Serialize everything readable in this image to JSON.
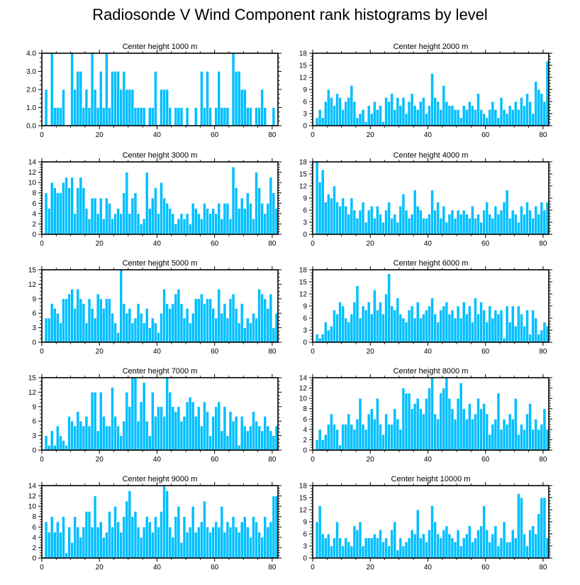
{
  "title": "Radiosonde V Wind Component rank histograms by level",
  "colors": {
    "bar": "#00bfff",
    "bar_edge": "#ffffff",
    "axis": "#000000"
  },
  "chart_data": [
    {
      "type": "bar",
      "title": "Center height 1000 m",
      "xlim": [
        0,
        82
      ],
      "ylim": [
        0,
        4
      ],
      "xticks": [
        0,
        20,
        40,
        60,
        80
      ],
      "xtick_labels": [
        "0",
        "20",
        "40",
        "60",
        "80"
      ],
      "yticks": [
        0,
        1,
        2,
        3,
        4
      ],
      "ytick_labels": [
        "0.0",
        "1.0",
        "2.0",
        "3.0",
        "4.0"
      ],
      "values": [
        0,
        2,
        0,
        4,
        1,
        1,
        1,
        2,
        0,
        0,
        4,
        2,
        3,
        3,
        1,
        2,
        1,
        4,
        2,
        1,
        3,
        1,
        4,
        1,
        3,
        3,
        3,
        2,
        3,
        2,
        2,
        2,
        1,
        1,
        1,
        1,
        0,
        1,
        1,
        3,
        0,
        2,
        2,
        2,
        1,
        0,
        1,
        1,
        1,
        0,
        1,
        0,
        0,
        1,
        0,
        3,
        1,
        3,
        1,
        0,
        1,
        3,
        1,
        1,
        1,
        0,
        4,
        3,
        3,
        2,
        2,
        1,
        1,
        0,
        1,
        1,
        2,
        1,
        0,
        0,
        1,
        0
      ]
    },
    {
      "type": "bar",
      "title": "Center height 2000 m",
      "xlim": [
        0,
        82
      ],
      "ylim": [
        0,
        18
      ],
      "xticks": [
        0,
        20,
        40,
        60,
        80
      ],
      "xtick_labels": [
        "0",
        "20",
        "40",
        "60",
        "80"
      ],
      "yticks": [
        0,
        3,
        6,
        9,
        12,
        15,
        18
      ],
      "ytick_labels": [
        "0",
        "3",
        "6",
        "9",
        "12",
        "15",
        "18"
      ],
      "values": [
        0,
        2,
        4,
        2,
        6,
        9,
        7,
        5,
        8,
        7,
        4,
        6,
        7,
        10,
        6,
        2,
        3,
        4,
        1,
        5,
        3,
        6,
        4,
        5,
        1,
        7,
        6,
        8,
        4,
        7,
        5,
        7,
        3,
        6,
        8,
        5,
        4,
        6,
        7,
        3,
        5,
        13,
        7,
        6,
        4,
        10,
        6,
        5,
        5,
        4,
        4,
        2,
        5,
        4,
        6,
        5,
        4,
        8,
        4,
        3,
        2,
        4,
        6,
        4,
        2,
        7,
        4,
        3,
        5,
        4,
        6,
        4,
        7,
        5,
        8,
        6,
        3,
        11,
        9,
        8,
        6,
        16
      ]
    },
    {
      "type": "bar",
      "title": "Center height 3000 m",
      "xlim": [
        0,
        82
      ],
      "ylim": [
        0,
        14
      ],
      "xticks": [
        0,
        20,
        40,
        60,
        80
      ],
      "xtick_labels": [
        "0",
        "20",
        "40",
        "60",
        "80"
      ],
      "yticks": [
        0,
        2,
        4,
        6,
        8,
        10,
        12,
        14
      ],
      "ytick_labels": [
        "0",
        "2",
        "4",
        "6",
        "8",
        "10",
        "12",
        "14"
      ],
      "values": [
        0,
        8,
        5,
        10,
        9,
        8,
        8,
        10,
        11,
        9,
        11,
        4,
        9,
        11,
        9,
        5,
        3,
        7,
        7,
        4,
        7,
        3,
        7,
        6,
        3,
        4,
        5,
        4,
        8,
        12,
        4,
        7,
        8,
        4,
        2,
        3,
        12,
        5,
        7,
        9,
        4,
        10,
        7,
        6,
        5,
        4,
        2,
        3,
        4,
        3,
        4,
        2,
        6,
        5,
        4,
        3,
        6,
        5,
        4,
        5,
        4,
        6,
        3,
        6,
        6,
        3,
        13,
        9,
        5,
        7,
        5,
        8,
        6,
        3,
        12,
        9,
        6,
        4,
        6,
        11,
        8,
        5
      ]
    },
    {
      "type": "bar",
      "title": "Center height 4000 m",
      "xlim": [
        0,
        82
      ],
      "ylim": [
        0,
        18
      ],
      "xticks": [
        0,
        20,
        40,
        60,
        80
      ],
      "xtick_labels": [
        "0",
        "20",
        "40",
        "60",
        "80"
      ],
      "yticks": [
        0,
        3,
        6,
        9,
        12,
        15,
        18
      ],
      "ytick_labels": [
        "0",
        "3",
        "6",
        "9",
        "12",
        "15",
        "18"
      ],
      "values": [
        0,
        18,
        13,
        16,
        8,
        10,
        9,
        12,
        8,
        7,
        9,
        7,
        5,
        9,
        6,
        4,
        6,
        8,
        3,
        6,
        7,
        4,
        7,
        5,
        3,
        6,
        8,
        4,
        5,
        3,
        7,
        10,
        6,
        4,
        5,
        11,
        7,
        6,
        4,
        4,
        5,
        11,
        6,
        8,
        4,
        7,
        3,
        5,
        6,
        4,
        6,
        5,
        6,
        5,
        4,
        7,
        4,
        5,
        3,
        6,
        8,
        5,
        4,
        7,
        5,
        6,
        8,
        11,
        4,
        6,
        5,
        3,
        7,
        5,
        8,
        6,
        4,
        7,
        5,
        8,
        6,
        8
      ]
    },
    {
      "type": "bar",
      "title": "Center height 5000 m",
      "xlim": [
        0,
        82
      ],
      "ylim": [
        0,
        15
      ],
      "xticks": [
        0,
        20,
        40,
        60,
        80
      ],
      "xtick_labels": [
        "0",
        "20",
        "40",
        "60",
        "80"
      ],
      "yticks": [
        0,
        3,
        6,
        9,
        12,
        15
      ],
      "ytick_labels": [
        "0",
        "3",
        "6",
        "9",
        "12",
        "15"
      ],
      "values": [
        0,
        5,
        5,
        8,
        7,
        6,
        4,
        9,
        9,
        10,
        11,
        7,
        11,
        9,
        8,
        4,
        9,
        7,
        5,
        10,
        9,
        7,
        9,
        9,
        6,
        4,
        2,
        15,
        8,
        6,
        7,
        4,
        5,
        8,
        6,
        4,
        7,
        3,
        5,
        4,
        2,
        6,
        11,
        8,
        7,
        8,
        10,
        11,
        8,
        5,
        7,
        4,
        6,
        9,
        9,
        10,
        8,
        9,
        9,
        7,
        5,
        11,
        6,
        8,
        5,
        9,
        10,
        7,
        4,
        8,
        3,
        5,
        4,
        6,
        5,
        11,
        10,
        9,
        7,
        10,
        3,
        6
      ]
    },
    {
      "type": "bar",
      "title": "Center height 6000 m",
      "xlim": [
        0,
        82
      ],
      "ylim": [
        0,
        18
      ],
      "xticks": [
        0,
        20,
        40,
        60,
        80
      ],
      "xtick_labels": [
        "0",
        "20",
        "40",
        "60",
        "80"
      ],
      "yticks": [
        0,
        3,
        6,
        9,
        12,
        15,
        18
      ],
      "ytick_labels": [
        "0",
        "3",
        "6",
        "9",
        "12",
        "15",
        "18"
      ],
      "values": [
        0,
        2,
        1,
        2,
        5,
        3,
        4,
        8,
        7,
        10,
        9,
        6,
        5,
        7,
        10,
        14,
        6,
        9,
        8,
        10,
        7,
        13,
        8,
        10,
        7,
        12,
        17,
        9,
        8,
        11,
        7,
        6,
        5,
        8,
        9,
        6,
        10,
        6,
        7,
        8,
        9,
        11,
        7,
        5,
        8,
        9,
        10,
        7,
        8,
        6,
        9,
        6,
        10,
        7,
        9,
        5,
        11,
        7,
        10,
        8,
        5,
        9,
        6,
        8,
        7,
        8,
        1,
        9,
        5,
        9,
        4,
        9,
        7,
        4,
        8,
        2,
        8,
        6,
        2,
        3,
        5,
        4
      ]
    },
    {
      "type": "bar",
      "title": "Center height 7000 m",
      "xlim": [
        0,
        82
      ],
      "ylim": [
        0,
        15
      ],
      "xticks": [
        0,
        20,
        40,
        60,
        80
      ],
      "xtick_labels": [
        "0",
        "20",
        "40",
        "60",
        "80"
      ],
      "yticks": [
        0,
        3,
        6,
        9,
        12,
        15
      ],
      "ytick_labels": [
        "0",
        "3",
        "6",
        "9",
        "12",
        "15"
      ],
      "values": [
        0,
        3,
        1,
        4,
        1,
        5,
        3,
        2,
        1,
        7,
        6,
        5,
        8,
        6,
        5,
        7,
        5,
        12,
        12,
        4,
        12,
        7,
        5,
        5,
        13,
        7,
        5,
        3,
        6,
        12,
        9,
        15,
        15,
        6,
        10,
        14,
        6,
        3,
        12,
        7,
        9,
        9,
        7,
        15,
        12,
        9,
        8,
        9,
        6,
        7,
        10,
        11,
        10,
        7,
        9,
        5,
        10,
        8,
        3,
        7,
        9,
        10,
        4,
        9,
        3,
        8,
        6,
        7,
        1,
        7,
        5,
        4,
        5,
        8,
        6,
        5,
        4,
        7,
        5,
        4,
        3,
        5
      ]
    },
    {
      "type": "bar",
      "title": "Center height 8000 m",
      "xlim": [
        0,
        82
      ],
      "ylim": [
        0,
        14
      ],
      "xticks": [
        0,
        20,
        40,
        60,
        80
      ],
      "xtick_labels": [
        "0",
        "20",
        "40",
        "60",
        "80"
      ],
      "yticks": [
        0,
        2,
        4,
        6,
        8,
        10,
        12,
        14
      ],
      "ytick_labels": [
        "0",
        "2",
        "4",
        "6",
        "8",
        "10",
        "12",
        "14"
      ],
      "values": [
        0,
        2,
        4,
        2,
        3,
        5,
        7,
        5,
        4,
        1,
        5,
        5,
        7,
        5,
        4,
        6,
        10,
        5,
        4,
        7,
        8,
        6,
        10,
        5,
        3,
        7,
        5,
        5,
        8,
        6,
        4,
        12,
        11,
        11,
        8,
        9,
        10,
        8,
        7,
        10,
        12,
        14,
        7,
        6,
        11,
        12,
        14,
        10,
        8,
        6,
        10,
        13,
        8,
        6,
        9,
        6,
        7,
        10,
        8,
        9,
        7,
        3,
        5,
        6,
        11,
        4,
        6,
        5,
        7,
        6,
        10,
        3,
        5,
        4,
        7,
        9,
        4,
        6,
        4,
        5,
        8,
        4
      ]
    },
    {
      "type": "bar",
      "title": "Center height 9000 m",
      "xlim": [
        0,
        82
      ],
      "ylim": [
        0,
        14
      ],
      "xticks": [
        0,
        20,
        40,
        60,
        80
      ],
      "xtick_labels": [
        "0",
        "20",
        "40",
        "60",
        "80"
      ],
      "yticks": [
        0,
        2,
        4,
        6,
        8,
        10,
        12,
        14
      ],
      "ytick_labels": [
        "0",
        "2",
        "4",
        "6",
        "8",
        "10",
        "12",
        "14"
      ],
      "values": [
        0,
        7,
        5,
        8,
        5,
        7,
        5,
        8,
        1,
        6,
        3,
        8,
        6,
        4,
        6,
        9,
        9,
        6,
        12,
        6,
        7,
        4,
        5,
        9,
        6,
        10,
        7,
        5,
        8,
        11,
        13,
        8,
        9,
        6,
        4,
        6,
        8,
        7,
        5,
        8,
        6,
        9,
        14,
        13,
        6,
        4,
        8,
        10,
        3,
        8,
        5,
        6,
        10,
        5,
        6,
        7,
        11,
        6,
        5,
        6,
        7,
        6,
        10,
        5,
        7,
        6,
        8,
        6,
        5,
        7,
        8,
        6,
        4,
        8,
        7,
        5,
        4,
        8,
        6,
        7,
        12,
        12
      ]
    },
    {
      "type": "bar",
      "title": "Center height 10000 m",
      "xlim": [
        0,
        82
      ],
      "ylim": [
        0,
        18
      ],
      "xticks": [
        0,
        20,
        40,
        60,
        80
      ],
      "xtick_labels": [
        "0",
        "20",
        "40",
        "60",
        "80"
      ],
      "yticks": [
        0,
        3,
        6,
        9,
        12,
        15,
        18
      ],
      "ytick_labels": [
        "0",
        "3",
        "6",
        "9",
        "12",
        "15",
        "18"
      ],
      "values": [
        0,
        9,
        13,
        6,
        5,
        6,
        3,
        5,
        9,
        5,
        3,
        5,
        4,
        3,
        8,
        7,
        9,
        3,
        5,
        5,
        5,
        6,
        5,
        7,
        4,
        5,
        3,
        7,
        9,
        2,
        5,
        3,
        4,
        5,
        7,
        6,
        12,
        5,
        6,
        4,
        7,
        13,
        9,
        6,
        5,
        7,
        8,
        6,
        5,
        4,
        7,
        3,
        5,
        6,
        8,
        4,
        5,
        7,
        8,
        13,
        7,
        4,
        6,
        8,
        3,
        5,
        9,
        4,
        4,
        7,
        5,
        16,
        15,
        6,
        3,
        7,
        8,
        6,
        11,
        15,
        15,
        5
      ]
    }
  ]
}
